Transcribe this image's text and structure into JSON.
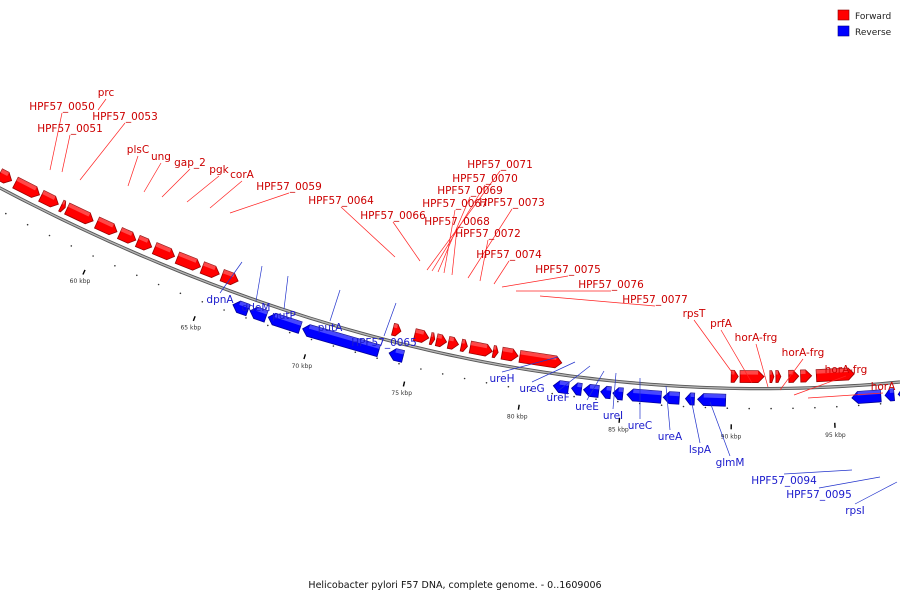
{
  "caption": "Helicobacter pylori F57 DNA, complete genome. - 0..1609006",
  "legend": [
    {
      "label": "Forward",
      "color": "#ff0000"
    },
    {
      "label": "Reverse",
      "color": "#0000ff"
    }
  ],
  "scale_labels": [
    "60 kbp",
    "65 kbp",
    "70 kbp",
    "75 kbp",
    "80 kbp",
    "85 kbp",
    "90 kbp",
    "95 kbp"
  ],
  "forward_genes": [
    "prc",
    "HPF57_0050",
    "HPF57_0053",
    "HPF57_0051",
    "plsC",
    "ung",
    "gap_2",
    "pgk",
    "corA",
    "HPF57_0059",
    "HPF57_0064",
    "HPF57_0066",
    "HPF57_0071",
    "HPF57_0070",
    "HPF57_0069",
    "HPF57_0067",
    "HPF57_0073",
    "HPF57_0068",
    "HPF57_0072",
    "HPF57_0074",
    "HPF57_0075",
    "HPF57_0076",
    "HPF57_0077",
    "rpsT",
    "prfA",
    "horA-frg",
    "horA-frg",
    "horA-frg",
    "horA"
  ],
  "reverse_genes": [
    "dpnA",
    "ddeM",
    "putP",
    "putA",
    "HPF57_0065",
    "ureH",
    "ureG",
    "ureF",
    "ureE",
    "ureI",
    "ureC",
    "ureA",
    "lspA",
    "glmM",
    "HPF57_0094",
    "HPF57_0095",
    "rpsI"
  ]
}
